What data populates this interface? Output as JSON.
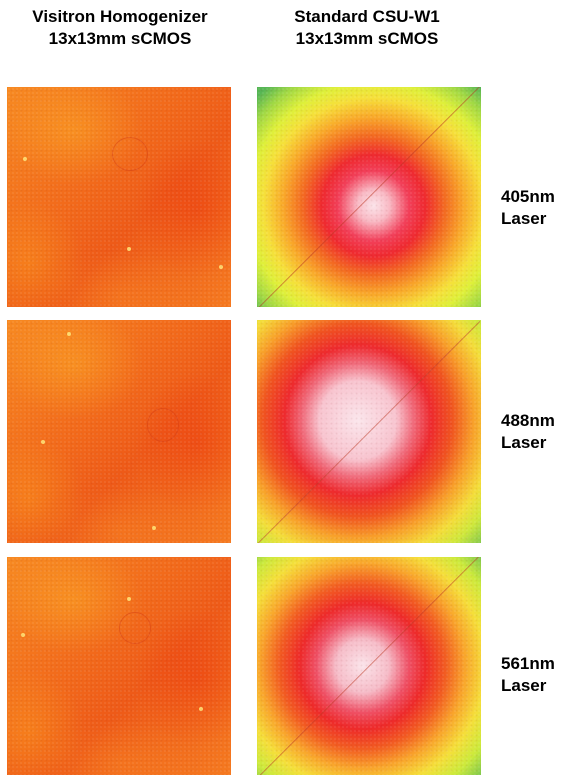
{
  "columns": [
    {
      "line1": "Visitron Homogenizer",
      "line2": "13x13mm sCMOS"
    },
    {
      "line1": "Standard CSU-W1",
      "line2": "13x13mm sCMOS"
    }
  ],
  "rows": [
    {
      "wavelength": "405nm",
      "unit": "Laser"
    },
    {
      "wavelength": "488nm",
      "unit": "Laser"
    },
    {
      "wavelength": "561nm",
      "unit": "Laser"
    }
  ],
  "colors": {
    "homogenizer_field": "#f26a1b",
    "center_bright": "#fbe4ea",
    "mid_red": "#ee2a2e",
    "edge_yellow": "#f5df3a",
    "edge_green": "#56b655"
  }
}
